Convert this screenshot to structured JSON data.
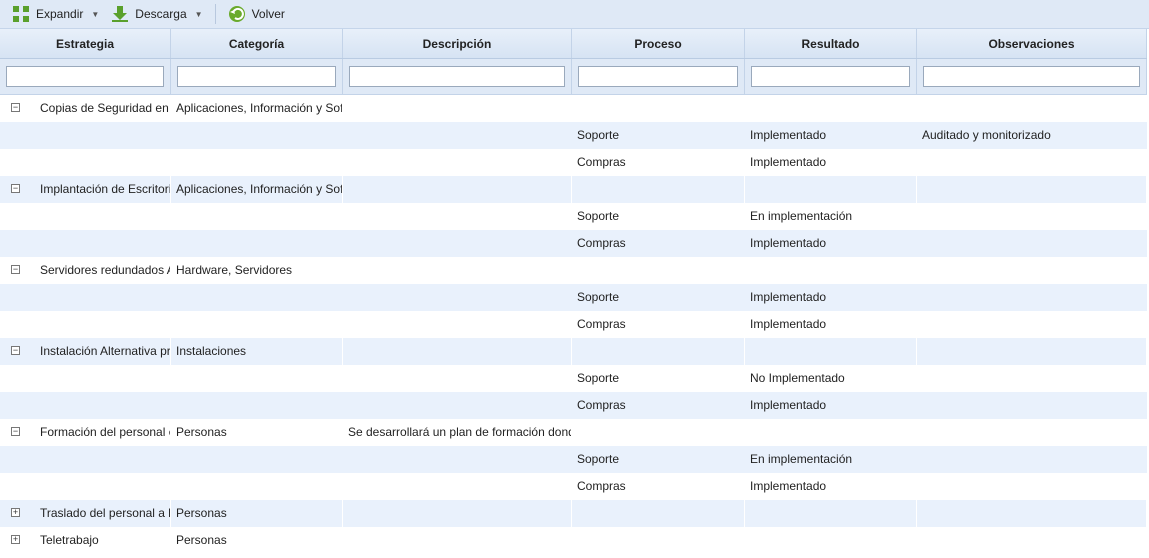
{
  "toolbar": {
    "expand": "Expandir",
    "download": "Descarga",
    "back": "Volver"
  },
  "columns": [
    "Estrategia",
    "Categoría",
    "Descripción",
    "Proceso",
    "Resultado",
    "Observaciones"
  ],
  "rows": [
    {
      "type": "parent",
      "expanded": true,
      "cells": [
        "Copias de Seguridad en to",
        "Aplicaciones, Información y Soft",
        "",
        "",
        "",
        ""
      ]
    },
    {
      "type": "child",
      "cells": [
        "",
        "",
        "",
        "Soporte",
        "Implementado",
        "Auditado y monitorizado"
      ]
    },
    {
      "type": "child",
      "cells": [
        "",
        "",
        "",
        "Compras",
        "Implementado",
        ""
      ]
    },
    {
      "type": "parent",
      "expanded": true,
      "cells": [
        "Implantación de Escritorio",
        "Aplicaciones, Información y Soft",
        "",
        "",
        "",
        ""
      ]
    },
    {
      "type": "child",
      "cells": [
        "",
        "",
        "",
        "Soporte",
        "En implementación",
        ""
      ]
    },
    {
      "type": "child",
      "cells": [
        "",
        "",
        "",
        "Compras",
        "Implementado",
        ""
      ]
    },
    {
      "type": "parent",
      "expanded": true,
      "cells": [
        "Servidores redundados Ac",
        "Hardware, Servidores",
        "",
        "",
        "",
        ""
      ]
    },
    {
      "type": "child",
      "cells": [
        "",
        "",
        "",
        "Soporte",
        "Implementado",
        ""
      ]
    },
    {
      "type": "child",
      "cells": [
        "",
        "",
        "",
        "Compras",
        "Implementado",
        ""
      ]
    },
    {
      "type": "parent",
      "expanded": true,
      "cells": [
        "Instalación Alternativa pre",
        "Instalaciones",
        "",
        "",
        "",
        ""
      ]
    },
    {
      "type": "child",
      "cells": [
        "",
        "",
        "",
        "Soporte",
        "No Implementado",
        ""
      ]
    },
    {
      "type": "child",
      "cells": [
        "",
        "",
        "",
        "Compras",
        "Implementado",
        ""
      ]
    },
    {
      "type": "parent",
      "expanded": true,
      "cells": [
        "Formación del personal en",
        "Personas",
        "Se desarrollará un plan de formación donde se",
        "",
        "",
        ""
      ]
    },
    {
      "type": "child",
      "cells": [
        "",
        "",
        "",
        "Soporte",
        "En implementación",
        ""
      ]
    },
    {
      "type": "child",
      "cells": [
        "",
        "",
        "",
        "Compras",
        "Implementado",
        ""
      ]
    },
    {
      "type": "parent",
      "expanded": false,
      "cells": [
        "Traslado del personal a la",
        "Personas",
        "",
        "",
        "",
        ""
      ]
    },
    {
      "type": "parent",
      "expanded": false,
      "cells": [
        "Teletrabajo",
        "Personas",
        "",
        "",
        "",
        ""
      ]
    }
  ]
}
